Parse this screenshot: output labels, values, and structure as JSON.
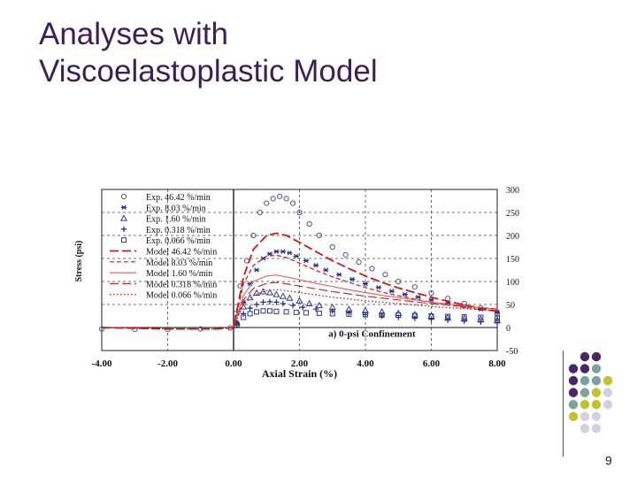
{
  "slide": {
    "title_line1": "Analyses with",
    "title_line2": "Viscoelastoplastic Model",
    "page_number": "9",
    "colors": {
      "title": "#3d1f55",
      "dot_purple": "#4a2669",
      "dot_teal": "#7aa39e",
      "dot_olive": "#c2c22c",
      "dot_lavender": "#d2d0e2"
    }
  },
  "chart_data": {
    "type": "scatter",
    "title": "",
    "xlabel": "Axial Strain (%)",
    "ylabel": "Stress (psi)",
    "annotation": "a) 0-psi Confinement",
    "xlim": [
      -4,
      8
    ],
    "ylim": [
      -50,
      300
    ],
    "x_ticks": [
      "-4.00",
      "-2.00",
      "0.00",
      "2.00",
      "4.00",
      "6.00",
      "8.00"
    ],
    "y_ticks": [
      "300",
      "250",
      "200",
      "150",
      "100",
      "50",
      "0",
      "-50"
    ],
    "grid": true,
    "legend_position": "top-left",
    "series": [
      {
        "name": "Exp. 46.42 %/min",
        "kind": "marker",
        "marker": "circle",
        "color": "#5050a0",
        "x": [
          -4,
          -3,
          -2,
          -1,
          -0.1,
          0.05,
          0.2,
          0.4,
          0.6,
          0.8,
          1.0,
          1.2,
          1.4,
          1.6,
          1.8,
          2.0,
          2.3,
          2.6,
          3.0,
          3.4,
          3.8,
          4.2,
          4.6,
          5.0,
          5.5,
          6.0,
          6.5,
          7.0,
          7.5,
          8.0
        ],
        "y": [
          -3,
          -4,
          -4,
          -3,
          -1,
          30,
          90,
          145,
          200,
          250,
          270,
          280,
          285,
          280,
          270,
          250,
          225,
          200,
          175,
          158,
          142,
          128,
          115,
          100,
          88,
          75,
          63,
          52,
          42,
          30
        ]
      },
      {
        "name": "Exp. 8.03 %/min",
        "kind": "marker",
        "marker": "asterisk",
        "color": "#1f2a80",
        "x": [
          0.1,
          0.3,
          0.5,
          0.7,
          0.9,
          1.1,
          1.3,
          1.5,
          1.7,
          1.9,
          2.2,
          2.5,
          2.8,
          3.2,
          3.6,
          4.0,
          4.4,
          4.8,
          5.2,
          5.6,
          6.0,
          6.5,
          7.0,
          7.5,
          8.0
        ],
        "y": [
          10,
          55,
          95,
          125,
          150,
          160,
          165,
          165,
          162,
          155,
          145,
          135,
          125,
          115,
          105,
          95,
          87,
          79,
          72,
          66,
          60,
          53,
          46,
          40,
          34
        ]
      },
      {
        "name": "Exp. 1.60 %/min",
        "kind": "marker",
        "marker": "triangle",
        "color": "#2a3a88",
        "x": [
          0.1,
          0.3,
          0.5,
          0.7,
          0.9,
          1.1,
          1.3,
          1.5,
          1.7,
          2.0,
          2.3,
          2.6,
          3.0,
          3.5,
          4.0,
          4.5,
          5.0,
          5.5,
          6.0,
          6.5,
          7.0,
          7.5,
          8.0
        ],
        "y": [
          10,
          45,
          65,
          75,
          78,
          76,
          72,
          68,
          64,
          58,
          52,
          48,
          44,
          40,
          37,
          34,
          31,
          28,
          25,
          22,
          20,
          18,
          16
        ]
      },
      {
        "name": "Exp. 0.318 %/min",
        "kind": "marker",
        "marker": "plus",
        "color": "#1f2a80",
        "x": [
          0.1,
          0.3,
          0.5,
          0.7,
          0.9,
          1.1,
          1.3,
          1.5,
          1.8,
          2.1,
          2.5,
          3.0,
          3.5,
          4.0,
          4.5,
          5.0,
          5.5,
          6.0,
          6.5,
          7.0,
          7.5,
          8.0
        ],
        "y": [
          8,
          30,
          42,
          50,
          55,
          56,
          55,
          52,
          48,
          44,
          40,
          36,
          32,
          28,
          25,
          22,
          20,
          18,
          16,
          14,
          12,
          10
        ]
      },
      {
        "name": "Exp. 0.066 %/min",
        "kind": "marker",
        "marker": "square",
        "color": "#2a3a88",
        "x": [
          0.1,
          0.3,
          0.5,
          0.7,
          0.9,
          1.1,
          1.3,
          1.6,
          1.9,
          2.2,
          2.6,
          3.0,
          3.5,
          4.0,
          4.5,
          5.0,
          5.5,
          6.0,
          6.5,
          7.0,
          7.5,
          8.0
        ],
        "y": [
          6,
          22,
          30,
          34,
          36,
          36,
          35,
          34,
          33,
          32,
          31,
          30,
          29,
          28,
          27,
          27,
          26,
          25,
          24,
          23,
          22,
          20
        ]
      },
      {
        "name": "Model 46.42 %/min",
        "kind": "line",
        "dash": "long-dash",
        "color": "#d01818",
        "x": [
          -4,
          -2,
          -0.5,
          0,
          0.3,
          0.6,
          1.0,
          1.3,
          1.6,
          2.0,
          2.5,
          3.0,
          3.5,
          4.0,
          4.5,
          5.0,
          5.5,
          6.0,
          6.5,
          7.0,
          7.5,
          8.0
        ],
        "y": [
          0,
          -3,
          -3,
          0,
          110,
          170,
          200,
          205,
          200,
          185,
          165,
          145,
          128,
          112,
          98,
          86,
          76,
          66,
          57,
          49,
          42,
          35
        ]
      },
      {
        "name": "Model 8.03 %/min",
        "kind": "line",
        "dash": "dashed",
        "color": "#d01818",
        "x": [
          0,
          0.3,
          0.6,
          1.0,
          1.3,
          1.6,
          2.0,
          2.5,
          3.0,
          3.5,
          4.0,
          4.5,
          5.0,
          5.5,
          6.0,
          6.5,
          7.0,
          7.5,
          8.0
        ],
        "y": [
          0,
          95,
          135,
          155,
          157,
          152,
          140,
          124,
          110,
          98,
          87,
          77,
          69,
          62,
          55,
          49,
          44,
          39,
          35
        ]
      },
      {
        "name": "Model 1.60 %/min",
        "kind": "line",
        "dash": "solid",
        "color": "#e06868",
        "x": [
          0,
          0.3,
          0.6,
          1.0,
          1.3,
          1.6,
          2.0,
          2.5,
          3.0,
          3.5,
          4.0,
          4.5,
          5.0,
          5.5,
          6.0,
          6.5,
          7.0,
          7.5,
          8.0
        ],
        "y": [
          0,
          70,
          100,
          112,
          114,
          110,
          104,
          96,
          89,
          82,
          76,
          70,
          65,
          60,
          55,
          51,
          47,
          43,
          40
        ]
      },
      {
        "name": "Model 0.318 %/min",
        "kind": "line",
        "dash": "long-dash",
        "color": "#c03030",
        "x": [
          0,
          0.3,
          0.6,
          1.0,
          1.3,
          1.6,
          2.0,
          2.5,
          3.0,
          3.5,
          4.0,
          4.5,
          5.0,
          5.5,
          6.0,
          6.5,
          7.0,
          7.5,
          8.0
        ],
        "y": [
          0,
          60,
          85,
          96,
          98,
          95,
          90,
          84,
          78,
          73,
          68,
          64,
          60,
          56,
          52,
          49,
          46,
          43,
          40
        ]
      },
      {
        "name": "Model 0.066 %/min",
        "kind": "line",
        "dash": "dotted",
        "color": "#b01010",
        "x": [
          -4,
          -2,
          -0.5,
          0,
          0.3,
          0.6,
          1.0,
          1.3,
          1.6,
          2.0,
          2.5,
          3.0,
          3.5,
          4.0,
          4.5,
          5.0,
          5.5,
          6.0,
          6.5,
          7.0,
          7.5,
          8.0
        ],
        "y": [
          0,
          -3,
          -3,
          0,
          50,
          70,
          80,
          82,
          80,
          76,
          71,
          66,
          62,
          58,
          55,
          52,
          49,
          46,
          43,
          41,
          39,
          37
        ]
      }
    ]
  }
}
